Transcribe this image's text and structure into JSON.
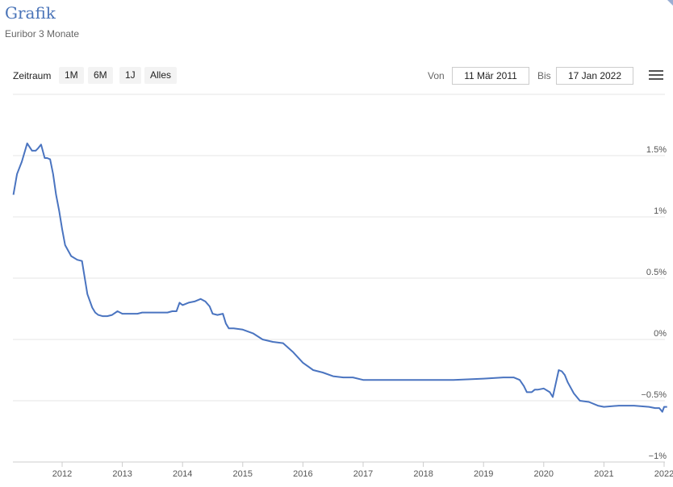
{
  "header": {
    "title": "Grafik",
    "subtitle": "Euribor 3 Monate"
  },
  "toolbar": {
    "range_label": "Zeitraum",
    "range_buttons": [
      "1M",
      "6M",
      "1J",
      "Alles"
    ],
    "from_label": "Von",
    "from_value": "11 Mär 2011",
    "to_label": "Bis",
    "to_value": "17 Jan 2022",
    "menu_icon": "hamburger-menu-icon"
  },
  "colors": {
    "series": "#4a74c0",
    "grid": "#e6e6e6",
    "title": "#4a74b8"
  },
  "chart_data": {
    "type": "line",
    "title": "",
    "xlabel": "",
    "ylabel": "",
    "xlim": [
      2011.19,
      2022.05
    ],
    "ylim": [
      -1.0,
      1.5
    ],
    "grid": true,
    "legend": "none",
    "x_ticks": [
      2012,
      2013,
      2014,
      2015,
      2016,
      2017,
      2018,
      2019,
      2020,
      2021,
      2022
    ],
    "x_tick_labels": [
      "2012",
      "2013",
      "2014",
      "2015",
      "2016",
      "2017",
      "2018",
      "2019",
      "2020",
      "2021",
      "2022"
    ],
    "y_ticks": [
      1.5,
      1.0,
      0.5,
      0.0,
      -0.5,
      -1.0
    ],
    "y_tick_labels": [
      "1.5%",
      "1%",
      "0.5%",
      "0%",
      "−0.5%",
      "−1%"
    ],
    "series": [
      {
        "name": "",
        "x": [
          2011.19,
          2011.25,
          2011.33,
          2011.42,
          2011.5,
          2011.56,
          2011.6,
          2011.65,
          2011.71,
          2011.75,
          2011.8,
          2011.85,
          2011.9,
          2011.95,
          2012.0,
          2012.05,
          2012.15,
          2012.25,
          2012.33,
          2012.42,
          2012.5,
          2012.55,
          2012.6,
          2012.67,
          2012.75,
          2012.83,
          2012.92,
          2013.0,
          2013.08,
          2013.17,
          2013.25,
          2013.33,
          2013.42,
          2013.5,
          2013.58,
          2013.67,
          2013.75,
          2013.83,
          2013.9,
          2013.95,
          2014.0,
          2014.1,
          2014.2,
          2014.3,
          2014.38,
          2014.45,
          2014.5,
          2014.58,
          2014.67,
          2014.72,
          2014.77,
          2014.85,
          2015.0,
          2015.17,
          2015.33,
          2015.5,
          2015.67,
          2015.83,
          2016.0,
          2016.17,
          2016.33,
          2016.5,
          2016.67,
          2016.83,
          2017.0,
          2017.5,
          2018.0,
          2018.5,
          2019.0,
          2019.33,
          2019.5,
          2019.6,
          2019.67,
          2019.72,
          2019.8,
          2019.85,
          2019.9,
          2020.0,
          2020.1,
          2020.15,
          2020.2,
          2020.25,
          2020.3,
          2020.35,
          2020.4,
          2020.5,
          2020.6,
          2020.75,
          2020.9,
          2021.0,
          2021.25,
          2021.5,
          2021.75,
          2021.85,
          2021.92,
          2021.97,
          2022.0,
          2022.05
        ],
        "y": [
          1.18,
          1.35,
          1.45,
          1.6,
          1.54,
          1.54,
          1.56,
          1.59,
          1.48,
          1.48,
          1.47,
          1.35,
          1.18,
          1.05,
          0.9,
          0.77,
          0.68,
          0.65,
          0.64,
          0.37,
          0.26,
          0.22,
          0.2,
          0.19,
          0.19,
          0.2,
          0.23,
          0.21,
          0.21,
          0.21,
          0.21,
          0.22,
          0.22,
          0.22,
          0.22,
          0.22,
          0.22,
          0.23,
          0.23,
          0.3,
          0.28,
          0.3,
          0.31,
          0.33,
          0.31,
          0.27,
          0.21,
          0.2,
          0.21,
          0.13,
          0.09,
          0.09,
          0.08,
          0.05,
          0.0,
          -0.02,
          -0.03,
          -0.1,
          -0.19,
          -0.25,
          -0.27,
          -0.3,
          -0.31,
          -0.31,
          -0.33,
          -0.33,
          -0.33,
          -0.33,
          -0.32,
          -0.31,
          -0.31,
          -0.33,
          -0.38,
          -0.43,
          -0.43,
          -0.41,
          -0.41,
          -0.4,
          -0.43,
          -0.47,
          -0.36,
          -0.25,
          -0.26,
          -0.29,
          -0.35,
          -0.44,
          -0.5,
          -0.51,
          -0.54,
          -0.55,
          -0.54,
          -0.54,
          -0.55,
          -0.56,
          -0.56,
          -0.59,
          -0.55,
          -0.55
        ]
      }
    ]
  }
}
